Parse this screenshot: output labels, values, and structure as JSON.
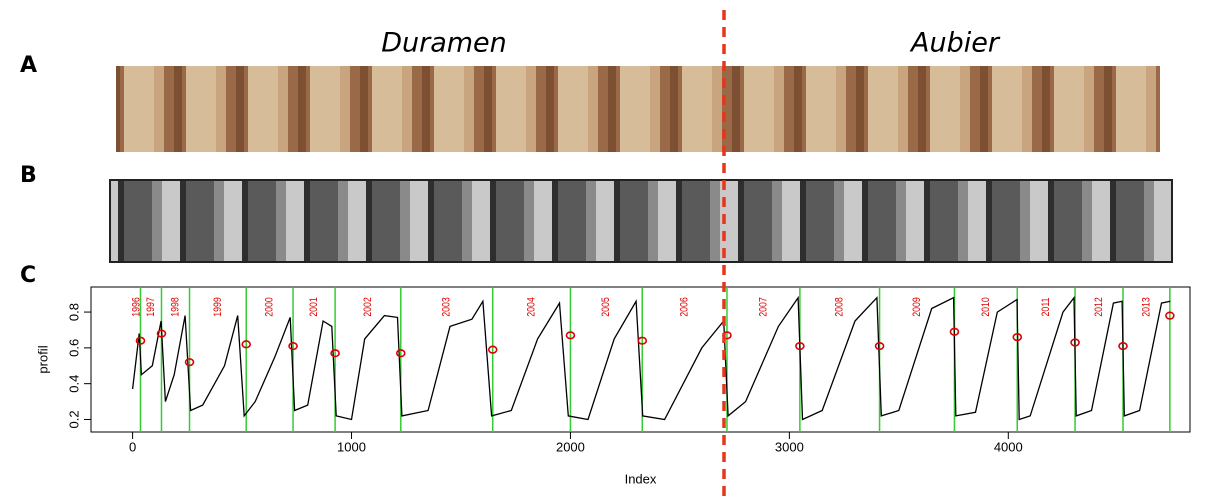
{
  "labels": [
    "A",
    "B",
    "C"
  ],
  "headings": [
    "Duramen",
    "Aubier"
  ],
  "chart_data": {
    "type": "line",
    "xlabel": "Index",
    "ylabel": "profil",
    "xlim": [
      -190,
      4830
    ],
    "ylim": [
      0.13,
      0.94
    ],
    "xticks": [
      0,
      1000,
      2000,
      3000,
      4000
    ],
    "yticks": [
      0.2,
      0.4,
      0.6,
      0.8
    ],
    "color": "#000000",
    "x": [
      0,
      30,
      40,
      90,
      130,
      150,
      190,
      240,
      265,
      320,
      420,
      480,
      510,
      560,
      650,
      720,
      740,
      800,
      870,
      910,
      930,
      1000,
      1060,
      1150,
      1210,
      1230,
      1350,
      1450,
      1550,
      1600,
      1640,
      1730,
      1850,
      1950,
      1990,
      2080,
      2200,
      2300,
      2330,
      2430,
      2600,
      2700,
      2720,
      2800,
      2950,
      3040,
      3060,
      3150,
      3300,
      3400,
      3420,
      3500,
      3650,
      3750,
      3760,
      3850,
      3950,
      4040,
      4050,
      4100,
      4250,
      4300,
      4310,
      4380,
      4480,
      4520,
      4530,
      4600,
      4700,
      4740
    ],
    "values": [
      0.37,
      0.68,
      0.45,
      0.5,
      0.75,
      0.3,
      0.45,
      0.78,
      0.25,
      0.28,
      0.5,
      0.78,
      0.22,
      0.3,
      0.55,
      0.77,
      0.25,
      0.28,
      0.75,
      0.72,
      0.22,
      0.2,
      0.65,
      0.78,
      0.77,
      0.22,
      0.25,
      0.72,
      0.76,
      0.86,
      0.22,
      0.25,
      0.65,
      0.85,
      0.22,
      0.2,
      0.65,
      0.86,
      0.22,
      0.2,
      0.6,
      0.75,
      0.22,
      0.3,
      0.72,
      0.88,
      0.2,
      0.25,
      0.75,
      0.88,
      0.22,
      0.25,
      0.82,
      0.88,
      0.22,
      0.24,
      0.8,
      0.87,
      0.2,
      0.22,
      0.8,
      0.88,
      0.22,
      0.25,
      0.85,
      0.86,
      0.22,
      0.25,
      0.85,
      0.86
    ],
    "vlines": [
      36,
      132,
      260,
      519,
      733,
      925,
      1225,
      1645,
      2000,
      2328,
      2715,
      3048,
      3412,
      3754,
      4041,
      4305,
      4524,
      4738
    ],
    "vline_color": "#33cc33",
    "points": {
      "color": "#dd0000",
      "x": [
        36,
        132,
        260,
        519,
        733,
        925,
        1225,
        1645,
        2000,
        2328,
        2715,
        3048,
        3412,
        3754,
        4041,
        4305,
        4524,
        4738
      ],
      "values": [
        0.64,
        0.68,
        0.52,
        0.62,
        0.61,
        0.57,
        0.57,
        0.59,
        0.67,
        0.64,
        0.67,
        0.61,
        0.61,
        0.69,
        0.66,
        0.63,
        0.61,
        0.78
      ]
    },
    "year_labels": [
      "1996",
      "1997",
      "1998",
      "1999",
      "2000",
      "2001",
      "2002",
      "2003",
      "2004",
      "2005",
      "2006",
      "2007",
      "2008",
      "2009",
      "2010",
      "2011",
      "2012",
      "2013"
    ],
    "year_color": "#dd0000"
  }
}
